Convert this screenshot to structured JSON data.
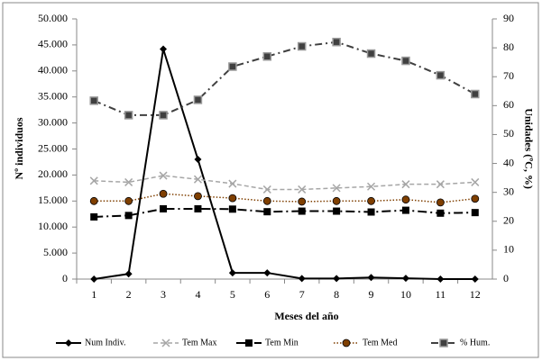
{
  "chart_data": {
    "type": "line",
    "categories": [
      1,
      2,
      3,
      4,
      5,
      6,
      7,
      8,
      9,
      10,
      11,
      12
    ],
    "x_label": "Meses del año",
    "y_label": "Nº individuos",
    "y2_label": "Unidades (ºC, %)",
    "ylim": [
      0,
      50000
    ],
    "yticks": [
      0,
      {
        "value": 5000,
        "label": "5.000"
      },
      {
        "value": 10000,
        "label": "10.000"
      },
      {
        "value": 15000,
        "label": "15.000"
      },
      {
        "value": 20000,
        "label": "20.000"
      },
      {
        "value": 25000,
        "label": "25.000"
      },
      {
        "value": 30000,
        "label": "30.000"
      },
      {
        "value": 35000,
        "label": "35.000"
      },
      {
        "value": 40000,
        "label": "40.000"
      },
      {
        "value": 45000,
        "label": "45.000"
      },
      {
        "value": 50000,
        "label": "50.000"
      }
    ],
    "y2lim": [
      0,
      90
    ],
    "y2ticks": [
      0,
      10,
      20,
      30,
      40,
      50,
      60,
      70,
      80,
      90
    ],
    "legend": "bottom",
    "series": [
      {
        "name": "Num Indiv.",
        "color": "#000000",
        "values": [
          0,
          1000,
          44200,
          23000,
          1200,
          1200,
          100,
          100,
          300,
          150,
          0,
          0
        ]
      },
      {
        "name": "Tem Max",
        "color": "#a6a6a6",
        "axis": "y2",
        "values": [
          34,
          33.5,
          35.8,
          34.5,
          33,
          31,
          31,
          31.5,
          32,
          32.8,
          32.8,
          33.5
        ]
      },
      {
        "name": "Tem Min",
        "color": "#000000",
        "axis": "y2",
        "values": [
          21.5,
          22,
          24.3,
          24.3,
          24.2,
          23.3,
          23.5,
          23.5,
          23.2,
          23.8,
          22.8,
          23
        ]
      },
      {
        "name": "Tem Med",
        "color": "#7f3f00",
        "axis": "y2",
        "values": [
          27,
          27,
          29.5,
          28.7,
          28,
          27,
          26.8,
          27,
          27,
          27.5,
          26.5,
          27.8
        ]
      },
      {
        "name": "% Hum.",
        "color": "#404040",
        "axis": "y2",
        "values": [
          61.7,
          56.7,
          56.7,
          62,
          73.5,
          77,
          80.5,
          82,
          78,
          75.5,
          70.5,
          64
        ]
      }
    ]
  }
}
